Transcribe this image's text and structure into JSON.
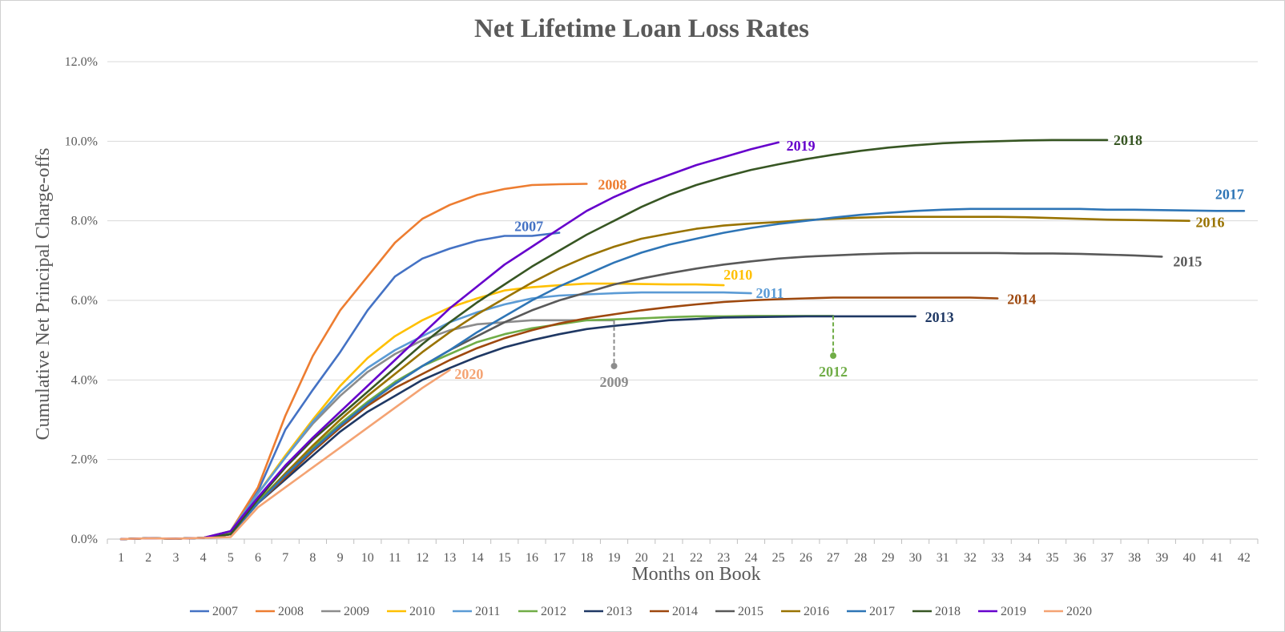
{
  "chart_data": {
    "type": "line",
    "title": "Net Lifetime Loan Loss Rates",
    "xlabel": "Months on Book",
    "ylabel": "Cumulative Net Principal Charge-offs",
    "ylim": [
      0,
      12
    ],
    "y_ticks": [
      "0.0%",
      "2.0%",
      "4.0%",
      "6.0%",
      "8.0%",
      "10.0%",
      "12.0%"
    ],
    "x_ticks": [
      "1",
      "2",
      "3",
      "4",
      "5",
      "6",
      "7",
      "8",
      "9",
      "10",
      "11",
      "12",
      "13",
      "14",
      "15",
      "16",
      "17",
      "18",
      "19",
      "20",
      "21",
      "22",
      "23",
      "24",
      "25",
      "26",
      "27",
      "28",
      "29",
      "30",
      "31",
      "32",
      "33",
      "34",
      "35",
      "36",
      "37",
      "38",
      "39",
      "40",
      "41",
      "42"
    ],
    "grid": true,
    "legend_position": "bottom",
    "series": [
      {
        "name": "2007",
        "color": "#4472C4",
        "label": "2007",
        "values": [
          0,
          0.02,
          0.01,
          0.03,
          0.2,
          1.2,
          2.75,
          3.75,
          4.7,
          5.75,
          6.6,
          7.05,
          7.3,
          7.5,
          7.62,
          7.62,
          7.7
        ]
      },
      {
        "name": "2008",
        "color": "#ED7D31",
        "label": "2008",
        "values": [
          0,
          0.02,
          0.01,
          0.03,
          0.2,
          1.3,
          3.1,
          4.6,
          5.75,
          6.6,
          7.45,
          8.05,
          8.4,
          8.65,
          8.8,
          8.9,
          8.92,
          8.93
        ]
      },
      {
        "name": "2009",
        "color": "#8C8C8C",
        "label": "2009",
        "values": [
          0,
          0.02,
          0.01,
          0.03,
          0.2,
          1.15,
          2.05,
          2.9,
          3.6,
          4.2,
          4.65,
          5.0,
          5.25,
          5.4,
          5.45,
          5.5,
          5.5,
          5.5,
          5.5
        ]
      },
      {
        "name": "2010",
        "color": "#FFC000",
        "label": "2010",
        "values": [
          0,
          0.02,
          0.01,
          0.03,
          0.2,
          1.15,
          2.1,
          3.0,
          3.85,
          4.55,
          5.1,
          5.5,
          5.82,
          6.05,
          6.25,
          6.33,
          6.38,
          6.42,
          6.42,
          6.41,
          6.4,
          6.4,
          6.38
        ]
      },
      {
        "name": "2011",
        "color": "#5B9BD5",
        "label": "2011",
        "values": [
          0,
          0.02,
          0.01,
          0.03,
          0.2,
          1.15,
          2.05,
          2.95,
          3.7,
          4.3,
          4.75,
          5.1,
          5.45,
          5.7,
          5.9,
          6.05,
          6.12,
          6.15,
          6.18,
          6.2,
          6.2,
          6.2,
          6.2,
          6.18
        ]
      },
      {
        "name": "2012",
        "color": "#70AD47",
        "label": "2012",
        "values": [
          0,
          0.02,
          0.01,
          0.03,
          0.15,
          0.95,
          1.65,
          2.3,
          2.9,
          3.45,
          3.95,
          4.35,
          4.65,
          4.95,
          5.15,
          5.3,
          5.4,
          5.5,
          5.52,
          5.55,
          5.58,
          5.6,
          5.6,
          5.61,
          5.61,
          5.61,
          5.61
        ]
      },
      {
        "name": "2013",
        "color": "#1F3864",
        "label": "2013",
        "values": [
          0,
          0.02,
          0.01,
          0.03,
          0.12,
          0.9,
          1.5,
          2.1,
          2.7,
          3.2,
          3.6,
          4.0,
          4.3,
          4.58,
          4.82,
          5.0,
          5.15,
          5.28,
          5.36,
          5.43,
          5.5,
          5.53,
          5.57,
          5.58,
          5.59,
          5.6,
          5.6,
          5.6,
          5.6,
          5.6
        ]
      },
      {
        "name": "2014",
        "color": "#9E480E",
        "label": "2014",
        "values": [
          0,
          0.02,
          0.01,
          0.03,
          0.12,
          0.9,
          1.55,
          2.2,
          2.8,
          3.35,
          3.8,
          4.15,
          4.5,
          4.8,
          5.05,
          5.25,
          5.42,
          5.55,
          5.65,
          5.75,
          5.83,
          5.9,
          5.96,
          6.0,
          6.03,
          6.05,
          6.07,
          6.07,
          6.07,
          6.07,
          6.07,
          6.07,
          6.05
        ]
      },
      {
        "name": "2015",
        "color": "#595959",
        "label": "2015",
        "values": [
          0,
          0.02,
          0.01,
          0.03,
          0.12,
          0.9,
          1.6,
          2.25,
          2.85,
          3.4,
          3.9,
          4.35,
          4.75,
          5.1,
          5.45,
          5.75,
          6.0,
          6.2,
          6.4,
          6.55,
          6.68,
          6.8,
          6.9,
          6.98,
          7.05,
          7.1,
          7.13,
          7.16,
          7.18,
          7.19,
          7.19,
          7.19,
          7.19,
          7.18,
          7.18,
          7.17,
          7.15,
          7.13,
          7.1
        ]
      },
      {
        "name": "2016",
        "color": "#997300",
        "label": "2016",
        "values": [
          0,
          0.02,
          0.01,
          0.03,
          0.12,
          0.9,
          1.65,
          2.35,
          3.0,
          3.6,
          4.15,
          4.7,
          5.2,
          5.65,
          6.05,
          6.45,
          6.8,
          7.1,
          7.35,
          7.55,
          7.68,
          7.8,
          7.88,
          7.93,
          7.97,
          8.02,
          8.05,
          8.08,
          8.1,
          8.1,
          8.1,
          8.1,
          8.1,
          8.09,
          8.07,
          8.05,
          8.03,
          8.02,
          8.01,
          8.0
        ]
      },
      {
        "name": "2017",
        "color": "#2E75B6",
        "label": "2017",
        "values": [
          0,
          0.02,
          0.01,
          0.03,
          0.12,
          0.9,
          1.6,
          2.25,
          2.85,
          3.4,
          3.9,
          4.35,
          4.75,
          5.2,
          5.6,
          6.0,
          6.35,
          6.65,
          6.95,
          7.2,
          7.4,
          7.55,
          7.7,
          7.82,
          7.92,
          8.0,
          8.08,
          8.15,
          8.2,
          8.25,
          8.28,
          8.3,
          8.3,
          8.3,
          8.3,
          8.3,
          8.28,
          8.28,
          8.27,
          8.26,
          8.25,
          8.25
        ]
      },
      {
        "name": "2018",
        "color": "#375623",
        "label": "2018",
        "values": [
          0,
          0.02,
          0.01,
          0.03,
          0.12,
          1.0,
          1.8,
          2.5,
          3.1,
          3.7,
          4.3,
          4.9,
          5.45,
          5.95,
          6.4,
          6.85,
          7.25,
          7.65,
          8.0,
          8.35,
          8.65,
          8.9,
          9.1,
          9.28,
          9.42,
          9.55,
          9.66,
          9.76,
          9.84,
          9.9,
          9.95,
          9.98,
          10.0,
          10.02,
          10.03,
          10.03,
          10.03
        ]
      },
      {
        "name": "2019",
        "color": "#6600CC",
        "label": "2019",
        "values": [
          0,
          0.02,
          0.01,
          0.03,
          0.2,
          1.05,
          1.85,
          2.55,
          3.2,
          3.85,
          4.5,
          5.15,
          5.8,
          6.35,
          6.9,
          7.35,
          7.8,
          8.25,
          8.6,
          8.9,
          9.15,
          9.4,
          9.6,
          9.8,
          9.97
        ]
      },
      {
        "name": "2020",
        "color": "#F4A373",
        "label": "2020",
        "values": [
          0,
          0.02,
          0.01,
          0.03,
          0.05,
          0.8,
          1.3,
          1.8,
          2.3,
          2.8,
          3.3,
          3.8,
          4.25
        ]
      }
    ],
    "annotations": [
      {
        "text": "2007",
        "series": "2007"
      },
      {
        "text": "2008",
        "series": "2008"
      },
      {
        "text": "2009",
        "series": "2009"
      },
      {
        "text": "2010",
        "series": "2010"
      },
      {
        "text": "2011",
        "series": "2011"
      },
      {
        "text": "2012",
        "series": "2012"
      },
      {
        "text": "2013",
        "series": "2013"
      },
      {
        "text": "2014",
        "series": "2014"
      },
      {
        "text": "2015",
        "series": "2015"
      },
      {
        "text": "2016",
        "series": "2016"
      },
      {
        "text": "2017",
        "series": "2017"
      },
      {
        "text": "2018",
        "series": "2018"
      },
      {
        "text": "2019",
        "series": "2019"
      },
      {
        "text": "2020",
        "series": "2020"
      }
    ]
  }
}
